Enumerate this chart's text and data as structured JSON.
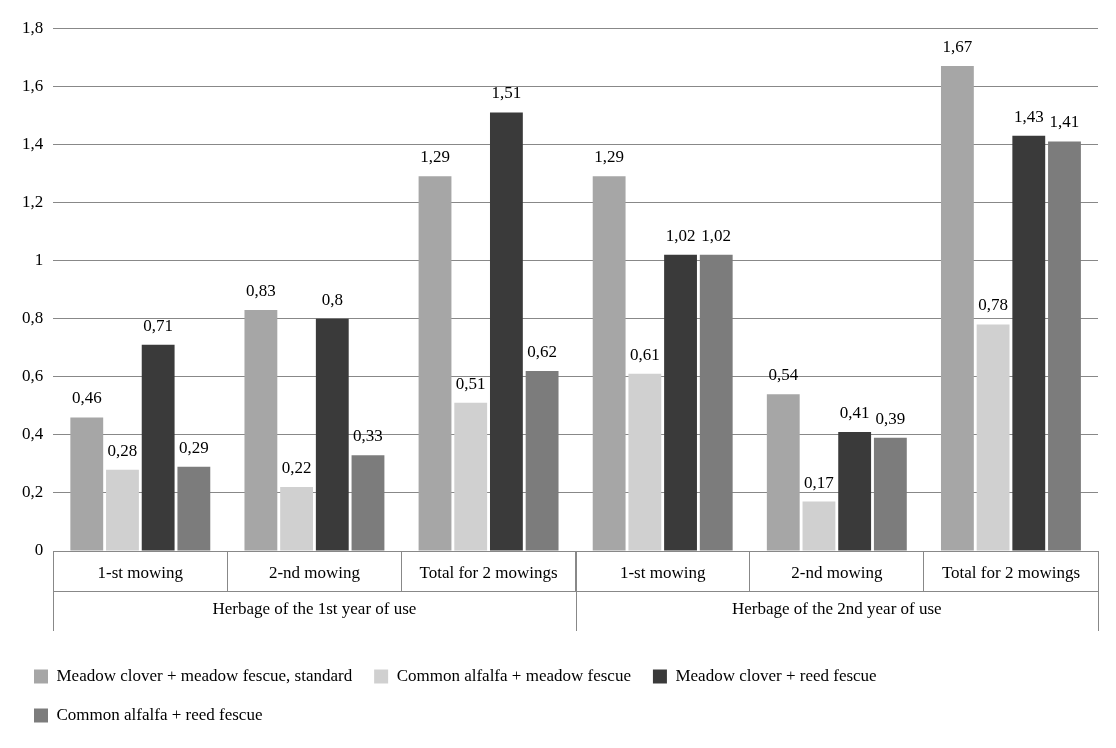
{
  "chart_data": {
    "type": "bar",
    "categories": [
      "1-st mowing",
      "2-nd mowing",
      "Total for 2 mowings",
      "1-st mowing",
      "2-nd mowing",
      "Total for 2 mowings"
    ],
    "annotations": [
      "Herbage of the 1st year of use",
      "Herbage of the 2nd year of use"
    ],
    "series": [
      {
        "name": "Meadow clover + meadow fescue, standard",
        "color": "#a6a6a6",
        "values": [
          0.46,
          0.83,
          1.29,
          1.29,
          0.54,
          1.67
        ],
        "value_labels": [
          "0,46",
          "0,83",
          "1,29",
          "1,29",
          "0,54",
          "1,67"
        ]
      },
      {
        "name": "Common alfalfa + meadow fescue",
        "color": "#d0d0d0",
        "values": [
          0.28,
          0.22,
          0.51,
          0.61,
          0.17,
          0.78
        ],
        "value_labels": [
          "0,28",
          "0,22",
          "0,51",
          "0,61",
          "0,17",
          "0,78"
        ]
      },
      {
        "name": "Meadow clover + reed fescue",
        "color": "#3a3a3a",
        "values": [
          0.71,
          0.8,
          1.51,
          1.02,
          0.41,
          1.43
        ],
        "value_labels": [
          "0,71",
          "0,8",
          "1,51",
          "1,02",
          "0,41",
          "1,43"
        ]
      },
      {
        "name": "Common alfalfa + reed fescue",
        "color": "#7c7c7c",
        "values": [
          0.29,
          0.33,
          0.62,
          1.02,
          0.39,
          1.41
        ],
        "value_labels": [
          "0,29",
          "0,33",
          "0,62",
          "1,02",
          "0,39",
          "1,41"
        ]
      }
    ],
    "ylim": [
      0,
      1.8
    ],
    "yticks": [
      0,
      {
        "value": 0.2,
        "label": "0,2"
      },
      {
        "value": 0.4,
        "label": "0,4"
      },
      {
        "value": 0.6,
        "label": "0,6"
      },
      {
        "value": 0.8,
        "label": "0,8"
      },
      1,
      {
        "value": 1.2,
        "label": "1,2"
      },
      {
        "value": 1.4,
        "label": "1,4"
      },
      {
        "value": 1.6,
        "label": "1,6"
      },
      {
        "value": 1.8,
        "label": "1,8"
      }
    ],
    "grid": "y",
    "legend": "bottom"
  }
}
